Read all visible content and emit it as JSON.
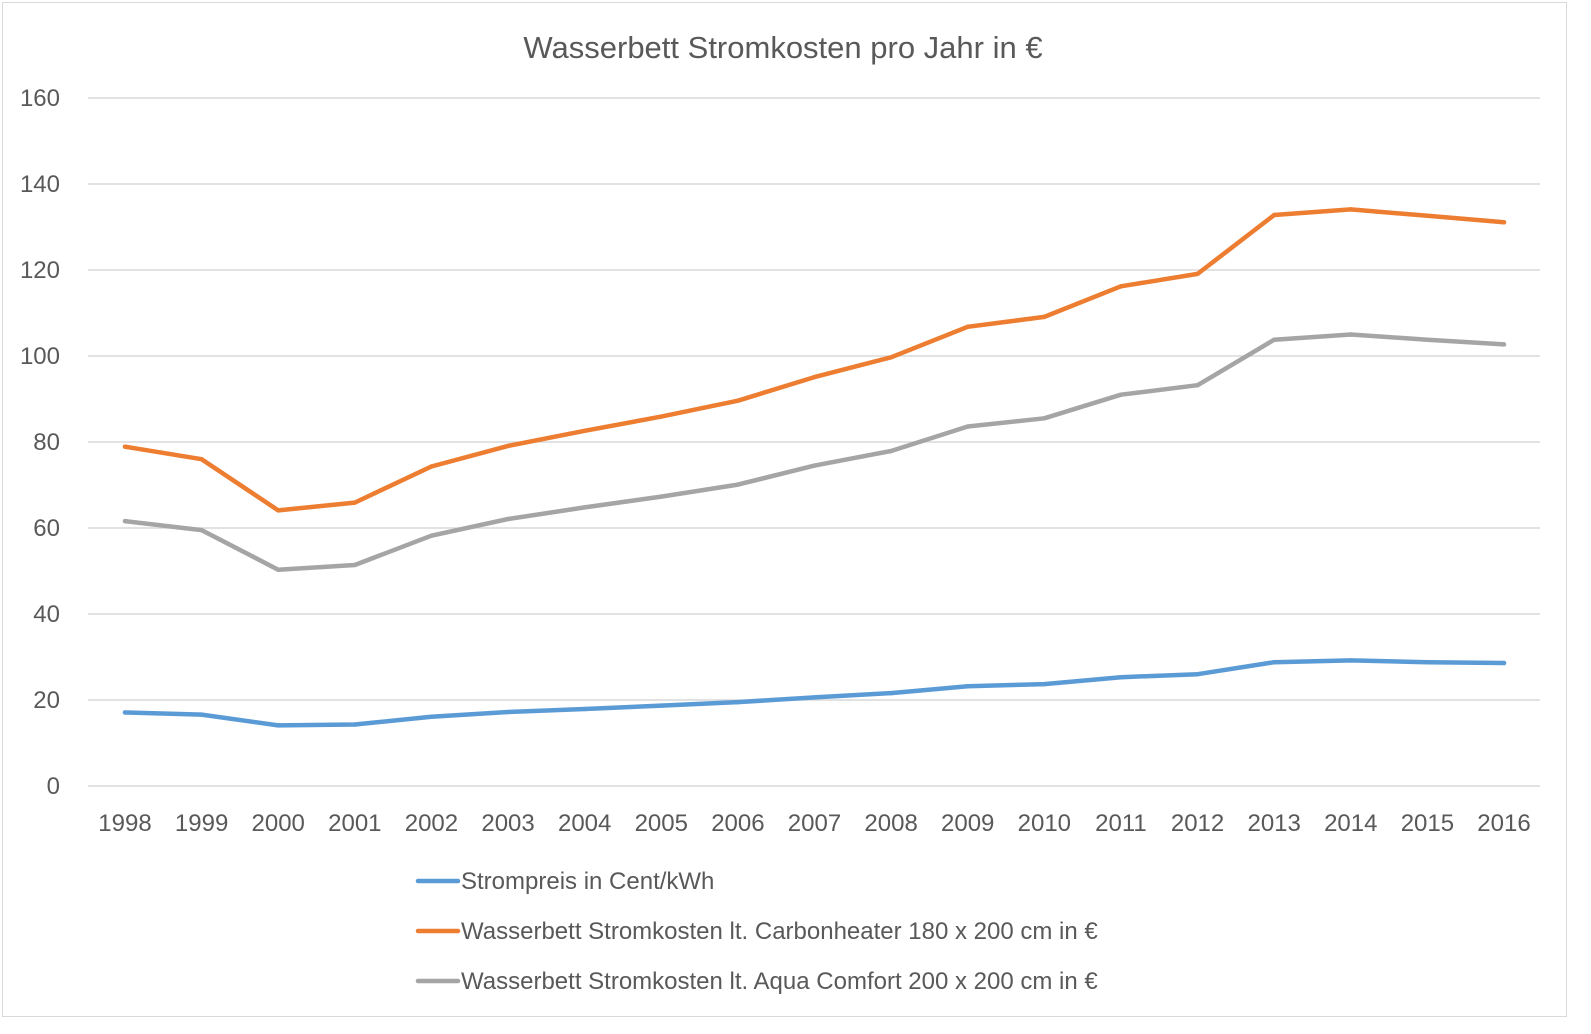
{
  "chart_data": {
    "type": "line",
    "title": "Wasserbett Stromkosten pro Jahr in €",
    "xlabel": "",
    "ylabel": "",
    "ylim": [
      0,
      160
    ],
    "yticks": [
      0,
      20,
      40,
      60,
      80,
      100,
      120,
      140,
      160
    ],
    "grid": true,
    "legend_position": "bottom",
    "categories": [
      "1998",
      "1999",
      "2000",
      "2001",
      "2002",
      "2003",
      "2004",
      "2005",
      "2006",
      "2007",
      "2008",
      "2009",
      "2010",
      "2011",
      "2012",
      "2013",
      "2014",
      "2015",
      "2016"
    ],
    "series": [
      {
        "name": "Strompreis in Cent/kWh",
        "color": "#5b9bd5",
        "values": [
          17.1,
          16.6,
          14.1,
          14.3,
          16.1,
          17.2,
          17.9,
          18.7,
          19.5,
          20.6,
          21.6,
          23.2,
          23.7,
          25.3,
          26.0,
          28.8,
          29.2,
          28.8,
          28.6
        ]
      },
      {
        "name": "Wasserbett Stromkosten lt. Carbonheater 180 x 200 cm in €",
        "color": "#ed7d31",
        "values": [
          78.9,
          76.0,
          64.1,
          65.9,
          74.3,
          79.1,
          82.6,
          85.9,
          89.6,
          95.1,
          99.7,
          106.8,
          109.1,
          116.2,
          119.1,
          132.8,
          134.1,
          132.6,
          131.1
        ]
      },
      {
        "name": "Wasserbett Stromkosten lt. Aqua Comfort 200 x 200 cm in €",
        "color": "#a5a5a5",
        "values": [
          61.6,
          59.5,
          50.3,
          51.4,
          58.2,
          62.1,
          64.8,
          67.3,
          70.1,
          74.5,
          77.9,
          83.6,
          85.5,
          91.0,
          93.2,
          103.8,
          105.0,
          103.8,
          102.7
        ]
      }
    ]
  }
}
